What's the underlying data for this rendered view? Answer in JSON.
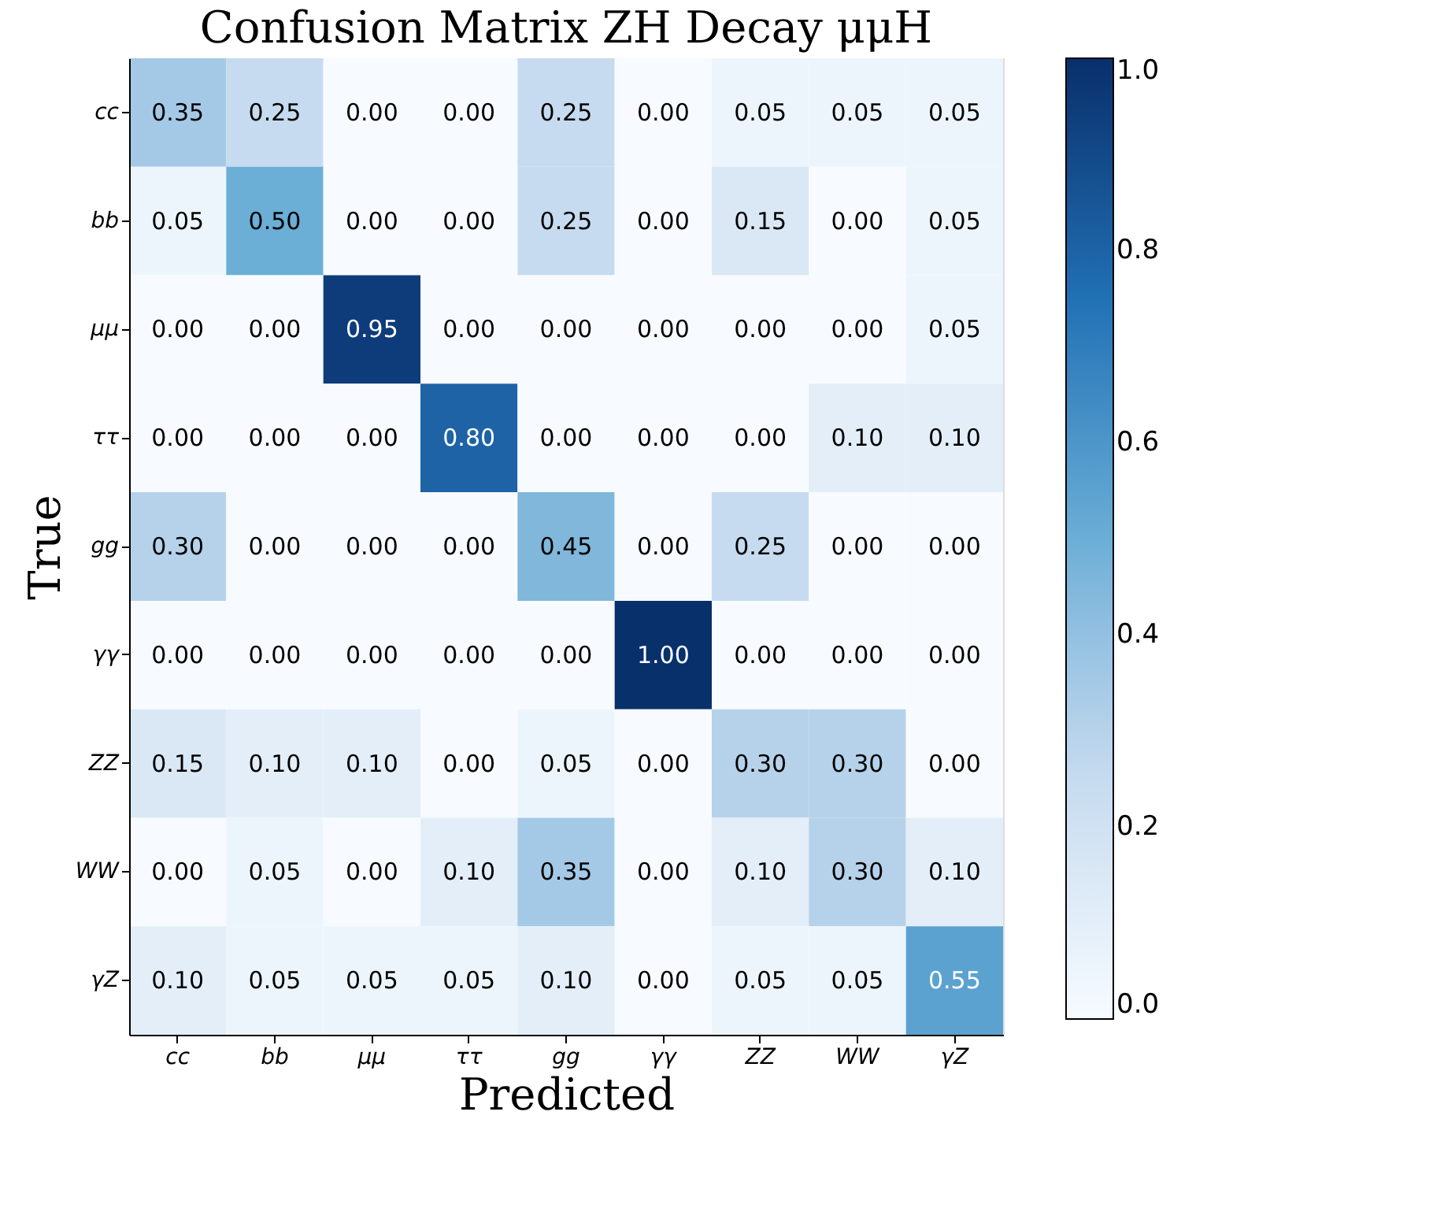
{
  "chart_data": {
    "type": "heatmap",
    "title": "Confusion Matrix ZH Decay μμH",
    "xlabel": "Predicted",
    "ylabel": "True",
    "categories": [
      "cc",
      "bb",
      "μμ",
      "ττ",
      "gg",
      "γγ",
      "ZZ",
      "WW",
      "γZ"
    ],
    "y_categories": [
      "cc",
      "bb",
      "μμ",
      "ττ",
      "gg",
      "γγ",
      "ZZ",
      "WW",
      "γZ"
    ],
    "cells": [
      [
        0.35,
        0.25,
        0.0,
        0.0,
        0.25,
        0.0,
        0.05,
        0.05,
        0.05
      ],
      [
        0.05,
        0.5,
        0.0,
        0.0,
        0.25,
        0.0,
        0.15,
        0.0,
        0.05
      ],
      [
        0.0,
        0.0,
        0.95,
        0.0,
        0.0,
        0.0,
        0.0,
        0.0,
        0.05
      ],
      [
        0.0,
        0.0,
        0.0,
        0.8,
        0.0,
        0.0,
        0.0,
        0.1,
        0.1
      ],
      [
        0.3,
        0.0,
        0.0,
        0.0,
        0.45,
        0.0,
        0.25,
        0.0,
        0.0
      ],
      [
        0.0,
        0.0,
        0.0,
        0.0,
        0.0,
        1.0,
        0.0,
        0.0,
        0.0
      ],
      [
        0.15,
        0.1,
        0.1,
        0.0,
        0.05,
        0.0,
        0.3,
        0.3,
        0.0
      ],
      [
        0.0,
        0.05,
        0.0,
        0.1,
        0.35,
        0.0,
        0.1,
        0.3,
        0.1
      ],
      [
        0.1,
        0.05,
        0.05,
        0.05,
        0.1,
        0.0,
        0.05,
        0.05,
        0.55
      ]
    ],
    "cell_labels": [
      [
        "0.35",
        "0.25",
        "0.00",
        "0.00",
        "0.25",
        "0.00",
        "0.05",
        "0.05",
        "0.05"
      ],
      [
        "0.05",
        "0.50",
        "0.00",
        "0.00",
        "0.25",
        "0.00",
        "0.15",
        "0.00",
        "0.05"
      ],
      [
        "0.00",
        "0.00",
        "0.95",
        "0.00",
        "0.00",
        "0.00",
        "0.00",
        "0.00",
        "0.05"
      ],
      [
        "0.00",
        "0.00",
        "0.00",
        "0.80",
        "0.00",
        "0.00",
        "0.00",
        "0.10",
        "0.10"
      ],
      [
        "0.30",
        "0.00",
        "0.00",
        "0.00",
        "0.45",
        "0.00",
        "0.25",
        "0.00",
        "0.00"
      ],
      [
        "0.00",
        "0.00",
        "0.00",
        "0.00",
        "0.00",
        "1.00",
        "0.00",
        "0.00",
        "0.00"
      ],
      [
        "0.15",
        "0.10",
        "0.10",
        "0.00",
        "0.05",
        "0.00",
        "0.30",
        "0.30",
        "0.00"
      ],
      [
        "0.00",
        "0.05",
        "0.00",
        "0.10",
        "0.35",
        "0.00",
        "0.10",
        "0.30",
        "0.10"
      ],
      [
        "0.10",
        "0.05",
        "0.05",
        "0.05",
        "0.10",
        "0.00",
        "0.05",
        "0.05",
        "0.55"
      ]
    ],
    "clim": [
      0,
      1
    ],
    "cticks": [
      {
        "value": 0,
        "label": "0.0"
      },
      {
        "value": 0.2,
        "label": "0.2"
      },
      {
        "value": 0.4,
        "label": "0.4"
      },
      {
        "value": 0.6,
        "label": "0.6"
      },
      {
        "value": 0.8,
        "label": "0.8"
      },
      {
        "value": 1,
        "label": "1.0"
      }
    ],
    "grid": false
  }
}
